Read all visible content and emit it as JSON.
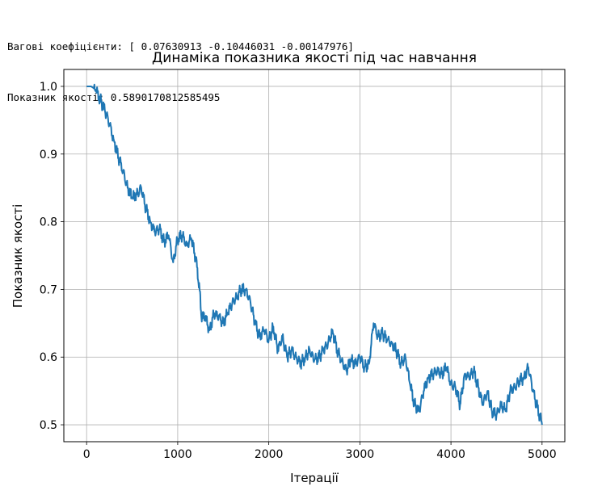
{
  "output": {
    "weights_line": "Вагові коефіцієнти: [ 0.07630913 -0.10446031 -0.00147976]",
    "score_line": "Показник якості: 0.5890170812585495"
  },
  "chart_data": {
    "type": "line",
    "title": "Динаміка показника якості під час навчання",
    "xlabel": "Ітерації",
    "ylabel": "Показник якості",
    "xlim": [
      -250,
      5250
    ],
    "ylim": [
      0.475,
      1.025
    ],
    "grid": true,
    "line_color": "#1f77b4",
    "x_ticks": [
      0,
      1000,
      2000,
      3000,
      4000,
      5000
    ],
    "y_ticks": [
      0.5,
      0.6,
      0.7,
      0.8,
      0.9,
      1.0
    ],
    "x_tick_labels": [
      "0",
      "1000",
      "2000",
      "3000",
      "4000",
      "5000"
    ],
    "y_tick_labels": [
      "0.5",
      "0.6",
      "0.7",
      "0.8",
      "0.9",
      "1.0"
    ],
    "series": [
      {
        "x": [
          0,
          50,
          100,
          150,
          200,
          250,
          300,
          350,
          400,
          450,
          500,
          550,
          600,
          650,
          700,
          750,
          800,
          850,
          900,
          950,
          1000,
          1050,
          1100,
          1150,
          1200,
          1240,
          1260,
          1300,
          1350,
          1400,
          1450,
          1500,
          1550,
          1600,
          1650,
          1700,
          1750,
          1800,
          1850,
          1900,
          1950,
          2000,
          2050,
          2100,
          2150,
          2200,
          2250,
          2300,
          2350,
          2400,
          2450,
          2500,
          2550,
          2600,
          2650,
          2700,
          2750,
          2800,
          2850,
          2900,
          2950,
          3000,
          3050,
          3100,
          3150,
          3200,
          3250,
          3300,
          3350,
          3400,
          3450,
          3500,
          3550,
          3600,
          3650,
          3700,
          3750,
          3800,
          3850,
          3900,
          3950,
          4000,
          4050,
          4100,
          4150,
          4200,
          4250,
          4300,
          4350,
          4400,
          4450,
          4500,
          4550,
          4600,
          4650,
          4700,
          4750,
          4800,
          4850,
          4900,
          4950,
          5000
        ],
        "y": [
          1.0,
          1.0,
          0.995,
          0.98,
          0.965,
          0.945,
          0.92,
          0.895,
          0.875,
          0.85,
          0.835,
          0.84,
          0.85,
          0.82,
          0.8,
          0.785,
          0.79,
          0.77,
          0.78,
          0.74,
          0.775,
          0.78,
          0.765,
          0.775,
          0.745,
          0.7,
          0.66,
          0.66,
          0.64,
          0.665,
          0.66,
          0.65,
          0.665,
          0.68,
          0.69,
          0.7,
          0.7,
          0.68,
          0.65,
          0.63,
          0.64,
          0.625,
          0.645,
          0.61,
          0.63,
          0.6,
          0.61,
          0.6,
          0.59,
          0.6,
          0.61,
          0.595,
          0.6,
          0.61,
          0.62,
          0.64,
          0.61,
          0.595,
          0.58,
          0.595,
          0.59,
          0.6,
          0.585,
          0.59,
          0.65,
          0.63,
          0.635,
          0.625,
          0.62,
          0.61,
          0.59,
          0.6,
          0.56,
          0.53,
          0.52,
          0.55,
          0.57,
          0.575,
          0.58,
          0.575,
          0.585,
          0.56,
          0.555,
          0.53,
          0.575,
          0.57,
          0.58,
          0.555,
          0.53,
          0.55,
          0.52,
          0.515,
          0.53,
          0.52,
          0.55,
          0.555,
          0.565,
          0.57,
          0.585,
          0.55,
          0.525,
          0.5
        ]
      }
    ]
  }
}
